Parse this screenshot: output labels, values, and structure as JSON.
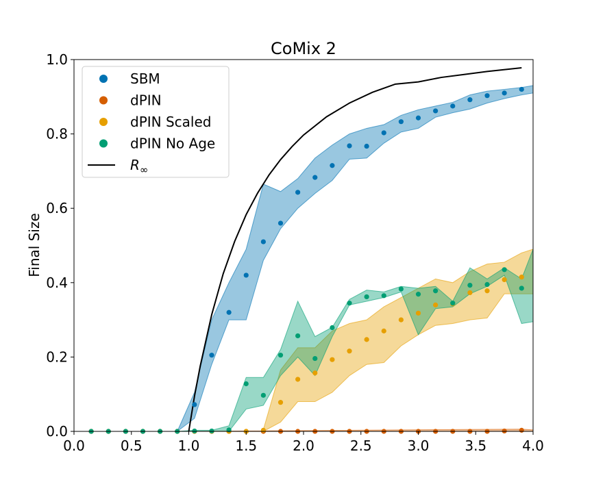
{
  "chart_data": {
    "type": "scatter",
    "title": "CoMix 2",
    "xlabel": "",
    "ylabel": "Final Size",
    "xlim": [
      0.0,
      4.0
    ],
    "ylim": [
      0.0,
      1.0
    ],
    "xticks": [
      "0.0",
      "0.5",
      "1.0",
      "1.5",
      "2.0",
      "2.5",
      "3.0",
      "3.5",
      "4.0"
    ],
    "yticks": [
      "0.0",
      "0.2",
      "0.4",
      "0.6",
      "0.8",
      "1.0"
    ],
    "grid": false,
    "legend_position": "top-left",
    "series": [
      {
        "name": "SBM",
        "color": "#0072b2",
        "x": [
          0.15,
          0.3,
          0.45,
          0.6,
          0.75,
          0.9,
          1.05,
          1.2,
          1.35,
          1.5,
          1.65,
          1.8,
          1.95,
          2.1,
          2.25,
          2.4,
          2.55,
          2.7,
          2.85,
          3.0,
          3.15,
          3.3,
          3.45,
          3.6,
          3.75,
          3.9
        ],
        "y": [
          0.0,
          0.0,
          0.0,
          0.0,
          0.0,
          0.0,
          0.072,
          0.205,
          0.32,
          0.42,
          0.51,
          0.56,
          0.643,
          0.683,
          0.715,
          0.768,
          0.767,
          0.803,
          0.833,
          0.843,
          0.862,
          0.875,
          0.892,
          0.903,
          0.91,
          0.92
        ],
        "band_x": [
          0.9,
          1.05,
          1.2,
          1.35,
          1.5,
          1.65,
          1.8,
          1.95,
          2.1,
          2.25,
          2.4,
          2.55,
          2.7,
          2.85,
          3.0,
          3.15,
          3.3,
          3.45,
          3.6,
          3.75,
          3.9,
          4.0
        ],
        "band_lower": [
          0.0,
          0.035,
          0.18,
          0.3,
          0.3,
          0.46,
          0.545,
          0.6,
          0.64,
          0.675,
          0.732,
          0.735,
          0.775,
          0.805,
          0.815,
          0.845,
          0.857,
          0.867,
          0.883,
          0.895,
          0.905,
          0.91
        ],
        "band_upper": [
          0.0,
          0.105,
          0.3,
          0.4,
          0.49,
          0.665,
          0.645,
          0.68,
          0.735,
          0.77,
          0.8,
          0.815,
          0.825,
          0.85,
          0.865,
          0.875,
          0.885,
          0.905,
          0.915,
          0.92,
          0.925,
          0.93
        ]
      },
      {
        "name": "dPIN",
        "color": "#d55e00",
        "x": [
          0.15,
          0.3,
          0.45,
          0.6,
          0.75,
          0.9,
          1.05,
          1.2,
          1.35,
          1.5,
          1.65,
          1.8,
          1.95,
          2.1,
          2.25,
          2.4,
          2.55,
          2.7,
          2.85,
          3.0,
          3.15,
          3.3,
          3.45,
          3.6,
          3.75,
          3.9
        ],
        "y": [
          0.0,
          0.0,
          0.0,
          0.0,
          0.0,
          0.0,
          0.0,
          0.0,
          0.0,
          0.0,
          0.0,
          0.0,
          0.0,
          0.0,
          0.0,
          0.0,
          0.0,
          0.0,
          0.0,
          0.0,
          0.0,
          0.0,
          0.0,
          0.0,
          0.001,
          0.003
        ],
        "band_x": [
          0.9,
          3.9,
          4.0
        ],
        "band_lower": [
          0.0,
          0.0,
          0.0
        ],
        "band_upper": [
          0.0,
          0.006,
          0.004
        ]
      },
      {
        "name": "dPIN Scaled",
        "color": "#e69f00",
        "x": [
          0.15,
          0.3,
          0.45,
          0.6,
          0.75,
          0.9,
          1.05,
          1.2,
          1.35,
          1.5,
          1.65,
          1.8,
          1.95,
          2.1,
          2.25,
          2.4,
          2.55,
          2.7,
          2.85,
          3.0,
          3.15,
          3.3,
          3.45,
          3.6,
          3.75,
          3.9
        ],
        "y": [
          0.0,
          0.0,
          0.0,
          0.0,
          0.0,
          0.0,
          0.0,
          0.0,
          0.0,
          0.0,
          0.003,
          0.078,
          0.14,
          0.157,
          0.193,
          0.216,
          0.247,
          0.27,
          0.3,
          0.318,
          0.34,
          0.343,
          0.373,
          0.378,
          0.408,
          0.415
        ],
        "band_x": [
          1.65,
          1.8,
          1.95,
          2.1,
          2.25,
          2.4,
          2.55,
          2.7,
          2.85,
          3.0,
          3.15,
          3.3,
          3.45,
          3.6,
          3.75,
          3.9,
          4.0
        ],
        "band_lower": [
          0.0,
          0.025,
          0.08,
          0.08,
          0.105,
          0.15,
          0.18,
          0.185,
          0.23,
          0.26,
          0.285,
          0.29,
          0.3,
          0.305,
          0.37,
          0.37,
          0.37
        ],
        "band_upper": [
          0.005,
          0.165,
          0.225,
          0.225,
          0.27,
          0.29,
          0.3,
          0.335,
          0.36,
          0.385,
          0.41,
          0.4,
          0.43,
          0.45,
          0.455,
          0.48,
          0.49
        ]
      },
      {
        "name": "dPIN No Age",
        "color": "#009e73",
        "x": [
          0.15,
          0.3,
          0.45,
          0.6,
          0.75,
          0.9,
          1.05,
          1.2,
          1.35,
          1.5,
          1.65,
          1.8,
          1.95,
          2.1,
          2.25,
          2.4,
          2.55,
          2.7,
          2.85,
          3.0,
          3.15,
          3.3,
          3.45,
          3.6,
          3.75,
          3.9
        ],
        "y": [
          0.0,
          0.0,
          0.0,
          0.0,
          0.0,
          0.0,
          0.001,
          0.001,
          0.004,
          0.128,
          0.097,
          0.205,
          0.257,
          0.196,
          0.279,
          0.345,
          0.362,
          0.365,
          0.383,
          0.369,
          0.378,
          0.345,
          0.393,
          0.395,
          0.435,
          0.385
        ],
        "band_x": [
          0.9,
          1.05,
          1.2,
          1.35,
          1.5,
          1.65,
          1.8,
          1.95,
          2.1,
          2.25,
          2.4,
          2.55,
          2.7,
          2.85,
          3.0,
          3.15,
          3.3,
          3.45,
          3.6,
          3.75,
          3.9,
          4.0
        ],
        "band_lower": [
          0.0,
          0.0,
          0.0,
          0.0,
          0.06,
          0.07,
          0.15,
          0.2,
          0.15,
          0.255,
          0.34,
          0.35,
          0.36,
          0.375,
          0.26,
          0.33,
          0.335,
          0.37,
          0.39,
          0.42,
          0.29,
          0.295
        ],
        "band_upper": [
          0.0,
          0.003,
          0.003,
          0.015,
          0.145,
          0.145,
          0.22,
          0.35,
          0.255,
          0.28,
          0.355,
          0.38,
          0.375,
          0.39,
          0.385,
          0.39,
          0.35,
          0.44,
          0.41,
          0.44,
          0.41,
          0.49
        ]
      },
      {
        "name": "R_∞",
        "type": "line",
        "color": "#000000",
        "x": [
          1.0,
          1.05,
          1.1,
          1.2,
          1.3,
          1.4,
          1.5,
          1.6,
          1.7,
          1.8,
          1.9,
          2.0,
          2.2,
          2.4,
          2.6,
          2.8,
          3.0,
          3.2,
          3.4,
          3.6,
          3.9
        ],
        "y": [
          0.0,
          0.095,
          0.176,
          0.314,
          0.424,
          0.511,
          0.583,
          0.641,
          0.69,
          0.731,
          0.766,
          0.797,
          0.846,
          0.883,
          0.912,
          0.934,
          0.94,
          0.952,
          0.96,
          0.968,
          0.978
        ]
      }
    ],
    "legend": [
      {
        "label": "SBM",
        "color": "#0072b2",
        "marker": "dot"
      },
      {
        "label": "dPIN",
        "color": "#d55e00",
        "marker": "dot"
      },
      {
        "label": "dPIN Scaled",
        "color": "#e69f00",
        "marker": "dot"
      },
      {
        "label": "dPIN No Age",
        "color": "#009e73",
        "marker": "dot"
      },
      {
        "label": "R",
        "label_subscript": "∞",
        "color": "#000000",
        "marker": "line"
      }
    ]
  }
}
